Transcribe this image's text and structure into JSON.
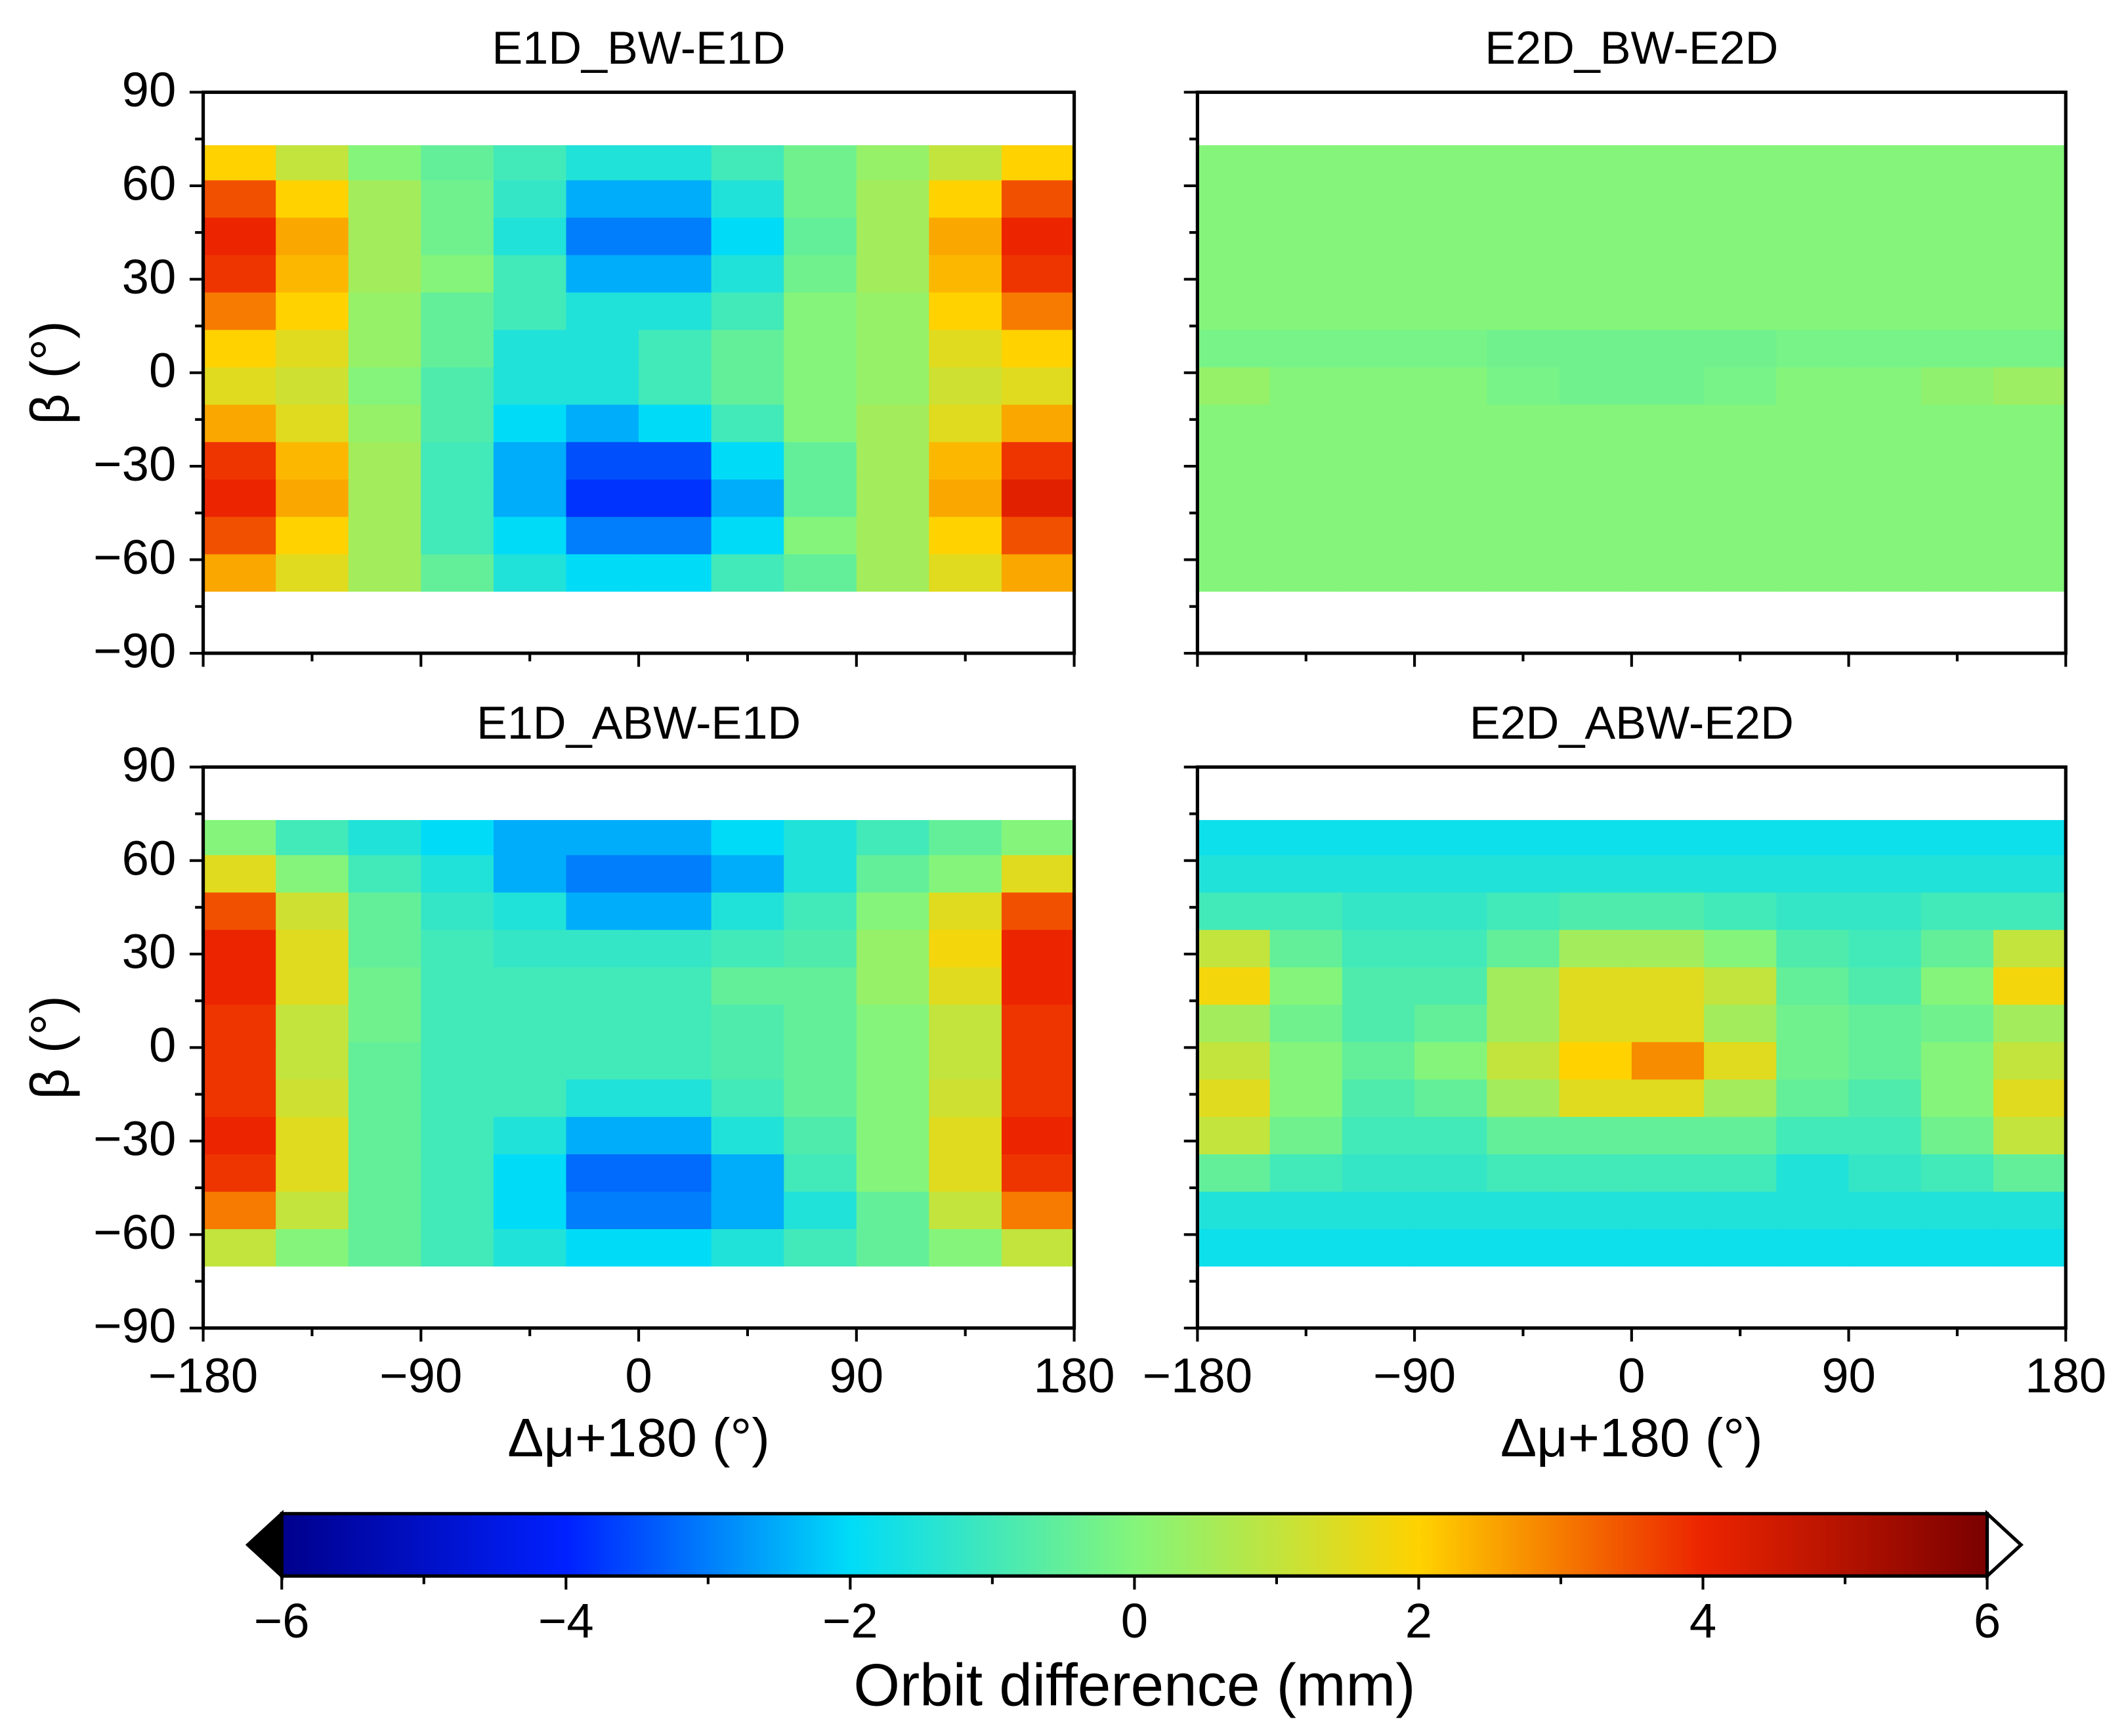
{
  "chart_data": [
    {
      "type": "heatmap",
      "title": "E1D_BW-E1D",
      "ylabel": "β (°)",
      "xlim": [
        -180,
        180
      ],
      "ylim": [
        -90,
        90
      ],
      "xticks": [
        {
          "value": -180,
          "label": "−180"
        },
        {
          "value": -90,
          "label": "−90"
        },
        0,
        90,
        180
      ],
      "yticks": [
        {
          "value": -90,
          "label": "−90"
        },
        {
          "value": -60,
          "label": "−60"
        },
        {
          "value": -30,
          "label": "−30"
        },
        0,
        30,
        60,
        90
      ],
      "xminorticks": [
        -135,
        -45,
        45,
        135
      ],
      "yminorticks": [
        -75,
        -45,
        -15,
        15,
        45,
        75
      ],
      "show_xticklabels": false,
      "show_yticklabels": true,
      "x_edges": [
        -180,
        -150,
        -120,
        -90,
        -60,
        -30,
        0,
        30,
        60,
        90,
        120,
        150,
        180
      ],
      "y_edges": [
        -70,
        -58,
        -46,
        -34,
        -22,
        -10,
        2,
        14,
        26,
        38,
        50,
        62,
        73
      ],
      "z": [
        [
          2.5,
          1.5,
          0.5,
          -0.5,
          -1.5,
          -2,
          -2,
          -1,
          -0.5,
          0.5,
          1.5,
          2.5
        ],
        [
          3.5,
          2,
          0.5,
          -1,
          -2,
          -3,
          -3,
          -2,
          0,
          0.5,
          2,
          3.5
        ],
        [
          4,
          2.5,
          0.5,
          -1,
          -2.5,
          -3.8,
          -3.8,
          -2.5,
          -0.5,
          0.5,
          2.5,
          4.2
        ],
        [
          3.8,
          2.3,
          0.5,
          -1,
          -2.5,
          -3.5,
          -3.5,
          -2,
          -0.5,
          0.5,
          2.3,
          3.8
        ],
        [
          2.5,
          1.5,
          0.3,
          -0.8,
          -2,
          -2.5,
          -2,
          -1,
          0,
          0.5,
          1.5,
          2.5
        ],
        [
          1.5,
          1.2,
          0,
          -0.8,
          -1.5,
          -1.5,
          -1,
          -0.5,
          0,
          0.3,
          1.2,
          1.5
        ],
        [
          2,
          1.5,
          0.3,
          -0.5,
          -1.5,
          -1.5,
          -1,
          -0.5,
          0,
          0.3,
          1.5,
          2
        ],
        [
          3,
          2,
          0.3,
          -0.5,
          -1,
          -1.5,
          -1.5,
          -1,
          0,
          0.3,
          2,
          3
        ],
        [
          3.8,
          2.3,
          0.5,
          0,
          -1,
          -2.5,
          -2.5,
          -1.5,
          -0.3,
          0.5,
          2.3,
          3.8
        ],
        [
          4,
          2.5,
          0.5,
          -0.3,
          -1.5,
          -3,
          -3,
          -2,
          -0.5,
          0.5,
          2.5,
          4
        ],
        [
          3.5,
          2,
          0.5,
          -0.3,
          -1.2,
          -2.5,
          -2.5,
          -1.5,
          -0.3,
          0.5,
          2,
          3.5
        ],
        [
          2,
          1,
          0,
          -0.5,
          -1,
          -1.5,
          -1.5,
          -1,
          -0.3,
          0.3,
          1,
          2
        ]
      ]
    },
    {
      "type": "heatmap",
      "title": "E2D_BW-E2D",
      "xlim": [
        -180,
        180
      ],
      "ylim": [
        -90,
        90
      ],
      "xticks": [
        {
          "value": -180,
          "label": "−180"
        },
        {
          "value": -90,
          "label": "−90"
        },
        0,
        90,
        180
      ],
      "yticks": [
        {
          "value": -90,
          "label": "−90"
        },
        {
          "value": -60,
          "label": "−60"
        },
        {
          "value": -30,
          "label": "−30"
        },
        0,
        30,
        60,
        90
      ],
      "xminorticks": [
        -135,
        -45,
        45,
        135
      ],
      "yminorticks": [
        -75,
        -45,
        -15,
        15,
        45,
        75
      ],
      "show_xticklabels": false,
      "show_yticklabels": false,
      "x_edges": [
        -180,
        -150,
        -120,
        -90,
        -60,
        -30,
        0,
        30,
        60,
        90,
        120,
        150,
        180
      ],
      "y_edges": [
        -70,
        -58,
        -46,
        -34,
        -22,
        -10,
        2,
        14,
        26,
        38,
        50,
        62,
        73
      ],
      "z": [
        [
          0,
          0,
          0,
          0,
          0,
          0,
          0,
          0,
          0,
          0,
          0,
          0
        ],
        [
          0,
          0,
          0,
          0,
          0,
          0,
          0,
          0,
          0,
          0,
          0,
          0
        ],
        [
          0,
          0,
          0,
          0,
          0,
          0,
          0,
          0,
          0,
          0,
          0,
          0
        ],
        [
          0,
          0,
          0,
          0,
          0,
          0,
          0,
          0,
          0,
          0,
          0,
          0
        ],
        [
          0,
          0,
          0,
          0,
          0,
          0,
          0,
          0,
          0,
          0,
          0,
          0
        ],
        [
          0.3,
          0,
          0,
          0,
          -0.2,
          -0.3,
          -0.3,
          -0.2,
          0,
          0,
          0.2,
          0.4
        ],
        [
          -0.2,
          -0.2,
          -0.2,
          -0.2,
          -0.3,
          -0.3,
          -0.3,
          -0.3,
          -0.2,
          -0.2,
          -0.2,
          -0.2
        ],
        [
          0,
          0,
          0,
          0,
          0,
          0,
          0,
          0,
          0,
          0,
          0,
          0
        ],
        [
          0,
          0,
          0,
          0,
          0,
          0,
          0,
          0,
          0,
          0,
          0,
          0
        ],
        [
          0,
          0,
          0,
          0,
          0,
          0,
          0,
          0,
          0,
          0,
          0,
          0
        ],
        [
          0,
          0,
          0,
          0,
          0,
          0,
          0,
          0,
          0,
          0,
          0,
          0
        ],
        [
          0,
          0,
          0,
          0,
          0,
          0,
          0,
          0,
          0,
          0,
          0,
          0
        ]
      ]
    },
    {
      "type": "heatmap",
      "title": "E1D_ABW-E1D",
      "ylabel": "β (°)",
      "xlabel": "Δμ+180 (°)",
      "xlim": [
        -180,
        180
      ],
      "ylim": [
        -90,
        90
      ],
      "xticks": [
        {
          "value": -180,
          "label": "−180"
        },
        {
          "value": -90,
          "label": "−90"
        },
        0,
        90,
        180
      ],
      "yticks": [
        {
          "value": -90,
          "label": "−90"
        },
        {
          "value": -60,
          "label": "−60"
        },
        {
          "value": -30,
          "label": "−30"
        },
        0,
        30,
        60,
        90
      ],
      "xminorticks": [
        -135,
        -45,
        45,
        135
      ],
      "yminorticks": [
        -75,
        -45,
        -15,
        15,
        45,
        75
      ],
      "show_xticklabels": true,
      "show_yticklabels": true,
      "x_edges": [
        -180,
        -150,
        -120,
        -90,
        -60,
        -30,
        0,
        30,
        60,
        90,
        120,
        150,
        180
      ],
      "y_edges": [
        -70,
        -58,
        -46,
        -34,
        -22,
        -10,
        2,
        14,
        26,
        38,
        50,
        62,
        73
      ],
      "z": [
        [
          1,
          0,
          -0.5,
          -1,
          -1.5,
          -2,
          -2,
          -1.5,
          -1,
          -0.5,
          0,
          1
        ],
        [
          3,
          1,
          -0.5,
          -1,
          -2,
          -3,
          -3,
          -2.5,
          -1.5,
          -0.5,
          1,
          3
        ],
        [
          3.8,
          1.5,
          -0.5,
          -1,
          -2,
          -3.2,
          -3.2,
          -2.5,
          -1,
          0,
          1.5,
          3.8
        ],
        [
          4,
          1.5,
          -0.5,
          -1,
          -1.5,
          -2.5,
          -2.5,
          -1.5,
          -0.8,
          0,
          1.5,
          4
        ],
        [
          3.8,
          1.2,
          -0.5,
          -1,
          -1,
          -1.5,
          -1.5,
          -1,
          -0.5,
          0,
          1.2,
          3.8
        ],
        [
          3.8,
          1,
          -0.5,
          -1,
          -1,
          -1,
          -1,
          -0.8,
          -0.5,
          0,
          1,
          3.8
        ],
        [
          3.8,
          1,
          -0.3,
          -1,
          -1,
          -1,
          -1,
          -0.8,
          -0.5,
          0,
          1,
          3.8
        ],
        [
          4,
          1.5,
          -0.3,
          -1,
          -1,
          -1,
          -1,
          -0.5,
          -0.5,
          0.3,
          1.5,
          4
        ],
        [
          4,
          1.5,
          -0.5,
          -1,
          -1.2,
          -1.2,
          -1.2,
          -1,
          -0.8,
          0.3,
          1.8,
          4
        ],
        [
          3.5,
          1.2,
          -0.5,
          -1.2,
          -1.5,
          -2.5,
          -2.5,
          -1.5,
          -1,
          0,
          1.5,
          3.5
        ],
        [
          1.5,
          0,
          -1,
          -1.5,
          -2.5,
          -3,
          -3,
          -2.5,
          -1.5,
          -0.5,
          0,
          1.5
        ],
        [
          0,
          -1,
          -1.5,
          -2,
          -2.5,
          -2.5,
          -2.5,
          -2,
          -1.5,
          -1,
          -0.5,
          0
        ]
      ]
    },
    {
      "type": "heatmap",
      "title": "E2D_ABW-E2D",
      "xlabel": "Δμ+180 (°)",
      "xlim": [
        -180,
        180
      ],
      "ylim": [
        -90,
        90
      ],
      "xticks": [
        {
          "value": -180,
          "label": "−180"
        },
        {
          "value": -90,
          "label": "−90"
        },
        0,
        90,
        180
      ],
      "yticks": [
        {
          "value": -90,
          "label": "−90"
        },
        {
          "value": -60,
          "label": "−60"
        },
        {
          "value": -30,
          "label": "−30"
        },
        0,
        30,
        60,
        90
      ],
      "xminorticks": [
        -135,
        -45,
        45,
        135
      ],
      "yminorticks": [
        -75,
        -45,
        -15,
        15,
        45,
        75
      ],
      "show_xticklabels": true,
      "show_yticklabels": false,
      "x_edges": [
        -180,
        -150,
        -120,
        -90,
        -60,
        -30,
        0,
        30,
        60,
        90,
        120,
        150,
        180
      ],
      "y_edges": [
        -70,
        -58,
        -46,
        -34,
        -22,
        -10,
        2,
        14,
        26,
        38,
        50,
        62,
        73
      ],
      "z": [
        [
          -1.8,
          -1.8,
          -1.8,
          -1.8,
          -1.8,
          -1.8,
          -1.8,
          -1.8,
          -1.8,
          -1.8,
          -1.8,
          -1.8
        ],
        [
          -1.5,
          -1.5,
          -1.5,
          -1.5,
          -1.5,
          -1.5,
          -1.5,
          -1.5,
          -1.5,
          -1.5,
          -1.5,
          -1.5
        ],
        [
          -0.5,
          -1,
          -1.2,
          -1.2,
          -1,
          -1,
          -1,
          -1,
          -1.5,
          -1.2,
          -1,
          -0.5
        ],
        [
          1,
          -0.3,
          -1,
          -1,
          -0.5,
          -0.5,
          -0.5,
          -0.5,
          -1,
          -1,
          -0.3,
          1
        ],
        [
          1.5,
          0,
          -0.8,
          -0.5,
          0.5,
          1.5,
          1.5,
          0.5,
          -0.5,
          -0.8,
          0,
          1.5
        ],
        [
          1,
          0,
          -0.5,
          0,
          1,
          2,
          2.8,
          1.5,
          -0.3,
          -0.5,
          0,
          1
        ],
        [
          0.5,
          -0.3,
          -0.8,
          -0.5,
          0.5,
          1.5,
          1.5,
          0.5,
          -0.3,
          -0.5,
          -0.3,
          0.5
        ],
        [
          1.8,
          0,
          -0.8,
          -0.8,
          0.5,
          1.5,
          1.5,
          1,
          -0.5,
          -0.8,
          0,
          1.8
        ],
        [
          1,
          -0.5,
          -1,
          -1,
          -0.5,
          0.5,
          0.5,
          0,
          -0.8,
          -1,
          -0.5,
          1
        ],
        [
          -1,
          -1,
          -1.2,
          -1.2,
          -1,
          -0.8,
          -0.8,
          -1,
          -1.2,
          -1.2,
          -1,
          -1
        ],
        [
          -1.5,
          -1.5,
          -1.5,
          -1.5,
          -1.5,
          -1.5,
          -1.5,
          -1.5,
          -1.5,
          -1.5,
          -1.5,
          -1.5
        ],
        [
          -1.8,
          -1.8,
          -1.8,
          -1.8,
          -1.8,
          -1.8,
          -1.8,
          -1.8,
          -1.8,
          -1.8,
          -1.8,
          -1.8
        ]
      ]
    },
    {
      "type": "colorbar",
      "label": "Orbit difference (mm)",
      "lim": [
        -6,
        6
      ],
      "ticks": [
        {
          "value": -6,
          "label": "−6"
        },
        {
          "value": -4,
          "label": "−4"
        },
        {
          "value": -2,
          "label": "−2"
        },
        0,
        2,
        4,
        6
      ],
      "minorticks": [
        -5,
        -3,
        -1,
        1,
        3,
        5
      ],
      "colormap": [
        "#00008c",
        "#0020ff",
        "#00dcf8",
        "#84f57a",
        "#ffd200",
        "#ec2400",
        "#7a0000"
      ],
      "extend_colors": [
        "#000000",
        "#ffffff"
      ]
    }
  ]
}
